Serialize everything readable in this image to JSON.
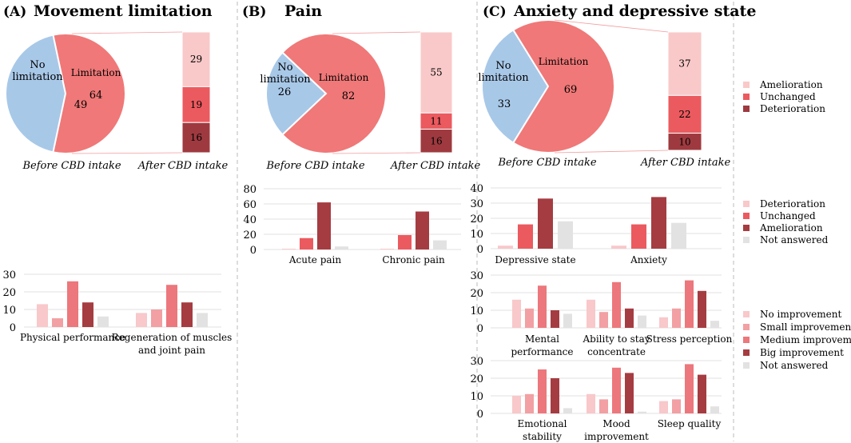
{
  "colors": {
    "pie_limit": "#F07878",
    "pie_nolimit": "#A8C8E8",
    "stack_amel": "#F9C9C9",
    "stack_unch": "#EB5A5F",
    "stack_det": "#9E3A3F",
    "bar_c1": "#F8C8CA",
    "bar_c2": "#EB5A5F",
    "bar_c3": "#A53C41",
    "bar_grey": "#E2E2E2",
    "imp_c1": "#F8C8CA",
    "imp_c2": "#F2A0A3",
    "imp_c3": "#EC777C",
    "imp_c4": "#A53C41",
    "imp_c5": "#E2E2E2",
    "divider": "#BBBBBB"
  },
  "panels": {
    "A": {
      "letter": "(A)",
      "title": "Movement limitation"
    },
    "B": {
      "letter": "(B)",
      "title": "Pain"
    },
    "C": {
      "letter": "(C)",
      "title": "Anxiety and depressive state"
    }
  },
  "captions": {
    "before": "Before CBD intake",
    "after": "After CBD intake"
  },
  "legends": {
    "stack": [
      "Amelioration",
      "Unchanged",
      "Deterioration"
    ],
    "outcome": [
      "Deterioration",
      "Unchanged",
      "Amelioration",
      "Not answered"
    ],
    "improvement": [
      "No improvement",
      "Small improvement",
      "Medium improvement",
      "Big improvement",
      "Not answered"
    ]
  },
  "chart_data": [
    {
      "id": "A-pie",
      "type": "pie",
      "labels": [
        "No limitation",
        "Limitation"
      ],
      "values": [
        49,
        64
      ],
      "label_lines": [
        [
          "No",
          "limitation"
        ],
        [
          "Limitation"
        ]
      ],
      "caption": "Before CBD intake"
    },
    {
      "id": "A-stack",
      "type": "bar",
      "stacked": true,
      "series_labels": [
        "Amelioration",
        "Unchanged",
        "Deterioration"
      ],
      "values": [
        29,
        19,
        16
      ],
      "caption": "After CBD intake"
    },
    {
      "id": "B-pie",
      "type": "pie",
      "labels": [
        "No limitation",
        "Limitation"
      ],
      "values": [
        26,
        82
      ],
      "label_lines": [
        [
          "No",
          "limitation"
        ],
        [
          "Limitation"
        ]
      ],
      "caption": "Before CBD intake"
    },
    {
      "id": "B-stack",
      "type": "bar",
      "stacked": true,
      "series_labels": [
        "Amelioration",
        "Unchanged",
        "Deterioration"
      ],
      "values": [
        55,
        11,
        16
      ],
      "caption": "After CBD intake"
    },
    {
      "id": "C-pie",
      "type": "pie",
      "labels": [
        "No limitation",
        "Limitation"
      ],
      "values": [
        33,
        69
      ],
      "label_lines": [
        [
          "No",
          "limitation"
        ],
        [
          "Limitation"
        ]
      ],
      "caption": "Before CBD intake"
    },
    {
      "id": "C-stack",
      "type": "bar",
      "stacked": true,
      "series_labels": [
        "Amelioration",
        "Unchanged",
        "Deterioration"
      ],
      "values": [
        37,
        22,
        10
      ],
      "caption": "After CBD intake"
    },
    {
      "id": "A-bars",
      "type": "bar",
      "ylim": [
        0,
        30
      ],
      "yticks": [
        0,
        10,
        20,
        30
      ],
      "categories": [
        [
          "Physical performance"
        ],
        [
          "Regeneration of muscles",
          "and joint pain"
        ]
      ],
      "series": [
        {
          "name": "No improvement",
          "values": [
            13,
            8
          ]
        },
        {
          "name": "Small improvement",
          "values": [
            5,
            10
          ]
        },
        {
          "name": "Medium improvement",
          "values": [
            26,
            24
          ]
        },
        {
          "name": "Big improvement",
          "values": [
            14,
            14
          ]
        },
        {
          "name": "Not answered",
          "values": [
            6,
            8
          ]
        }
      ]
    },
    {
      "id": "B-bars",
      "type": "bar",
      "ylim": [
        0,
        80
      ],
      "yticks": [
        0,
        20,
        40,
        60,
        80
      ],
      "categories": [
        [
          "Acute pain"
        ],
        [
          "Chronic pain"
        ]
      ],
      "series": [
        {
          "name": "Deterioration",
          "values": [
            1,
            1
          ]
        },
        {
          "name": "Unchanged",
          "values": [
            15,
            19
          ]
        },
        {
          "name": "Amelioration",
          "values": [
            62,
            50
          ]
        },
        {
          "name": "Not answered",
          "values": [
            4,
            12
          ]
        }
      ]
    },
    {
      "id": "C-bars1",
      "type": "bar",
      "ylim": [
        0,
        40
      ],
      "yticks": [
        0,
        10,
        20,
        30,
        40
      ],
      "categories": [
        [
          "Depressive state"
        ],
        [
          "Anxiety"
        ]
      ],
      "series": [
        {
          "name": "Deterioration",
          "values": [
            2,
            2
          ]
        },
        {
          "name": "Unchanged",
          "values": [
            16,
            16
          ]
        },
        {
          "name": "Amelioration",
          "values": [
            33,
            34
          ]
        },
        {
          "name": "Not answered",
          "values": [
            18,
            17
          ]
        }
      ]
    },
    {
      "id": "C-bars2",
      "type": "bar",
      "ylim": [
        0,
        30
      ],
      "yticks": [
        0,
        10,
        20,
        30
      ],
      "categories": [
        [
          "Mental",
          "performance"
        ],
        [
          "Ability to stay",
          "concentrate"
        ],
        [
          "Stress perception"
        ]
      ],
      "series": [
        {
          "name": "No improvement",
          "values": [
            16,
            16,
            6
          ]
        },
        {
          "name": "Small improvement",
          "values": [
            11,
            9,
            11
          ]
        },
        {
          "name": "Medium improvement",
          "values": [
            24,
            26,
            27
          ]
        },
        {
          "name": "Big improvement",
          "values": [
            10,
            11,
            21
          ]
        },
        {
          "name": "Not answered",
          "values": [
            8,
            7,
            4
          ]
        }
      ]
    },
    {
      "id": "C-bars3",
      "type": "bar",
      "ylim": [
        0,
        30
      ],
      "yticks": [
        0,
        10,
        20,
        30
      ],
      "categories": [
        [
          "Emotional",
          "stability"
        ],
        [
          "Mood",
          "improvement"
        ],
        [
          "Sleep quality"
        ]
      ],
      "series": [
        {
          "name": "No improvement",
          "values": [
            10,
            11,
            7
          ]
        },
        {
          "name": "Small improvement",
          "values": [
            11,
            8,
            8
          ]
        },
        {
          "name": "Medium improvement",
          "values": [
            25,
            26,
            28
          ]
        },
        {
          "name": "Big improvement",
          "values": [
            20,
            23,
            22
          ]
        },
        {
          "name": "Not answered",
          "values": [
            3,
            1,
            4
          ]
        }
      ]
    }
  ]
}
